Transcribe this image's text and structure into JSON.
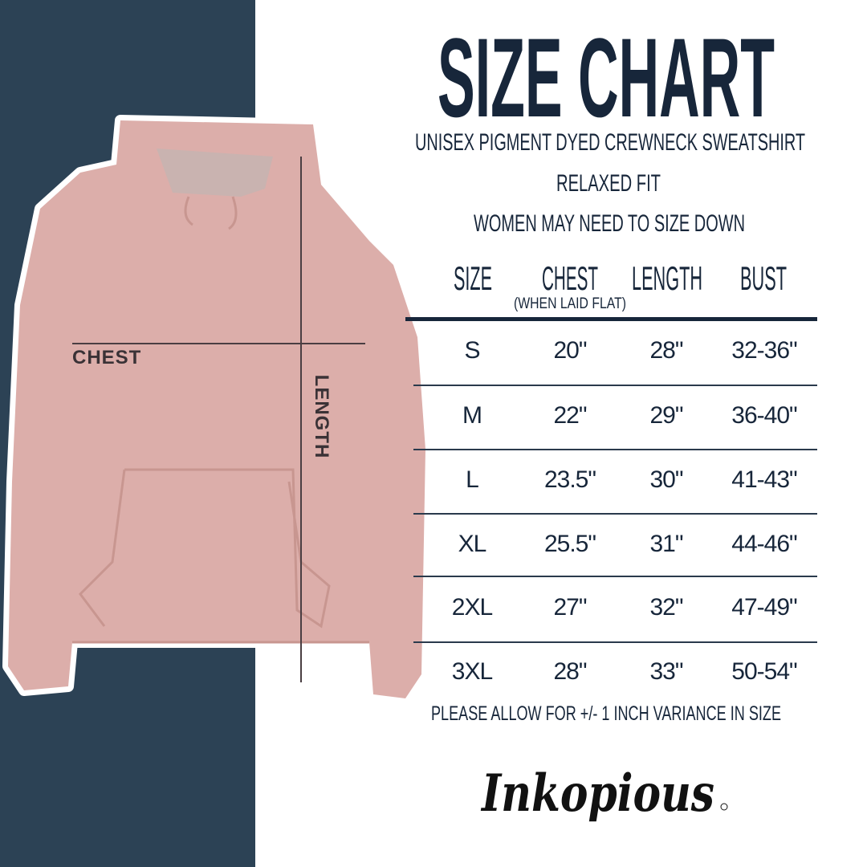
{
  "title": "SIZE CHART",
  "subtitle": "UNISEX PIGMENT DYED CREWNECK SWEATSHIRT",
  "fit": "RELAXED FIT",
  "advice": "WOMEN MAY NEED TO SIZE DOWN",
  "headers": {
    "size": "SIZE",
    "chest": "CHEST",
    "chest_note": "(WHEN LAID FLAT)",
    "length": "LENGTH",
    "bust": "BUST"
  },
  "rows": [
    {
      "size": "S",
      "chest": "20\"",
      "length": "28\"",
      "bust": "32-36\""
    },
    {
      "size": "M",
      "chest": "22\"",
      "length": "29\"",
      "bust": "36-40\""
    },
    {
      "size": "L",
      "chest": "23.5\"",
      "length": "30\"",
      "bust": "41-43\""
    },
    {
      "size": "XL",
      "chest": "25.5\"",
      "length": "31\"",
      "bust": "44-46\""
    },
    {
      "size": "2XL",
      "chest": "27\"",
      "length": "32\"",
      "bust": "47-49\""
    },
    {
      "size": "3XL",
      "chest": "28\"",
      "length": "33\"",
      "bust": "50-54\""
    }
  ],
  "disclaimer": "PLEASE ALLOW FOR +/- 1 INCH VARIANCE IN SIZE",
  "garment_labels": {
    "chest": "CHEST",
    "length": "LENGTH"
  },
  "logo": "Inkopious",
  "colors": {
    "navy": "#2c4255",
    "text": "#17263a",
    "garment": "#dcaeaa"
  }
}
